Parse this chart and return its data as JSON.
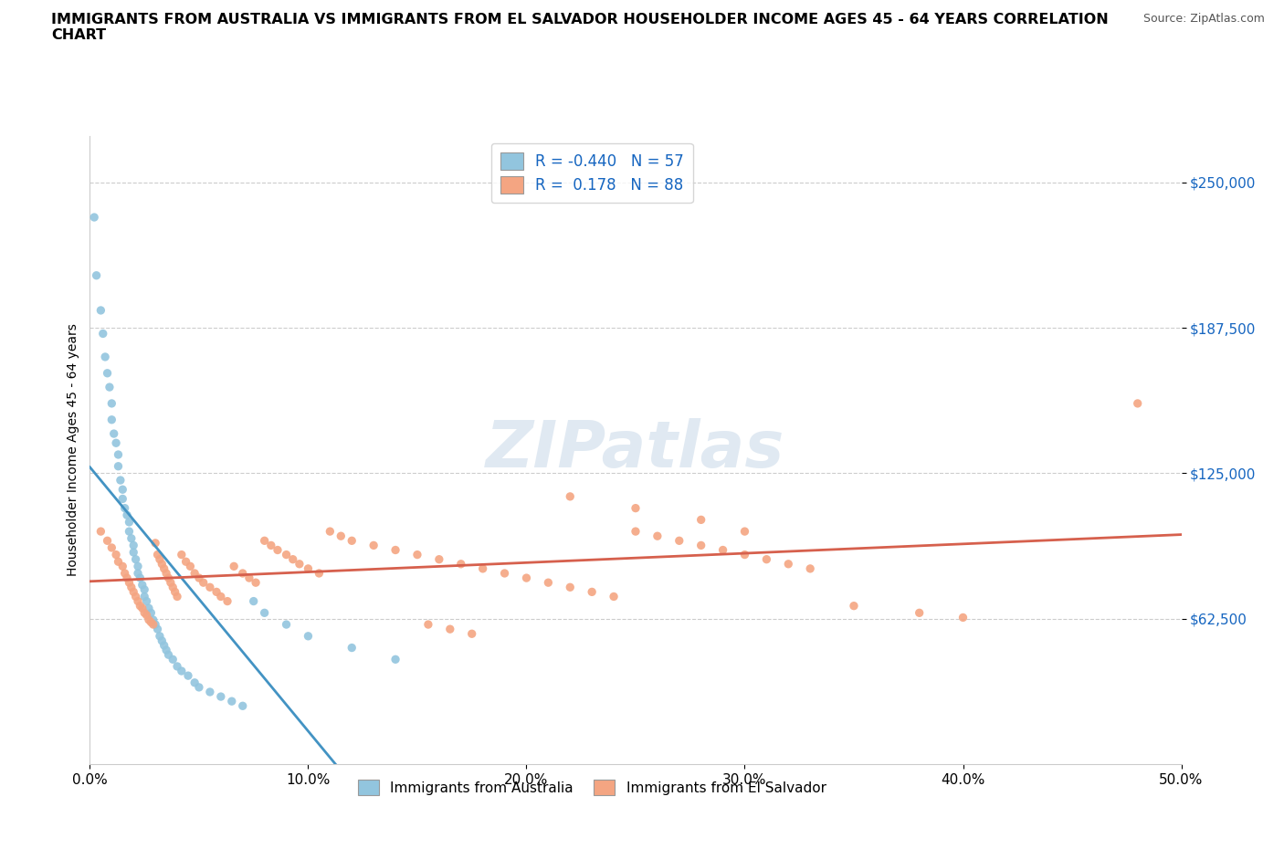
{
  "title": "IMMIGRANTS FROM AUSTRALIA VS IMMIGRANTS FROM EL SALVADOR HOUSEHOLDER INCOME AGES 45 - 64 YEARS CORRELATION\nCHART",
  "source": "Source: ZipAtlas.com",
  "ylabel": "Householder Income Ages 45 - 64 years",
  "xlim": [
    0.0,
    0.5
  ],
  "ylim": [
    0,
    270000
  ],
  "x_ticks": [
    0.0,
    0.1,
    0.2,
    0.3,
    0.4,
    0.5
  ],
  "x_tick_labels": [
    "0.0%",
    "10.0%",
    "20.0%",
    "30.0%",
    "40.0%",
    "50.0%"
  ],
  "y_ticks": [
    62500,
    125000,
    187500,
    250000
  ],
  "y_tick_labels": [
    "$62,500",
    "$125,000",
    "$187,500",
    "$250,000"
  ],
  "australia_color": "#92c5de",
  "australia_line_color": "#4393c3",
  "el_salvador_color": "#f4a582",
  "el_salvador_line_color": "#d6604d",
  "R_australia": -0.44,
  "N_australia": 57,
  "R_el_salvador": 0.178,
  "N_el_salvador": 88,
  "watermark": "ZIPatlas",
  "background_color": "#ffffff",
  "aus_x": [
    0.002,
    0.003,
    0.005,
    0.006,
    0.007,
    0.008,
    0.009,
    0.01,
    0.01,
    0.011,
    0.012,
    0.013,
    0.013,
    0.014,
    0.015,
    0.015,
    0.016,
    0.017,
    0.018,
    0.018,
    0.019,
    0.02,
    0.02,
    0.021,
    0.022,
    0.022,
    0.023,
    0.024,
    0.025,
    0.025,
    0.026,
    0.027,
    0.028,
    0.029,
    0.03,
    0.031,
    0.032,
    0.033,
    0.034,
    0.035,
    0.036,
    0.038,
    0.04,
    0.042,
    0.045,
    0.048,
    0.05,
    0.055,
    0.06,
    0.065,
    0.07,
    0.075,
    0.08,
    0.09,
    0.1,
    0.12,
    0.14
  ],
  "aus_y": [
    235000,
    210000,
    195000,
    185000,
    175000,
    168000,
    162000,
    155000,
    148000,
    142000,
    138000,
    133000,
    128000,
    122000,
    118000,
    114000,
    110000,
    107000,
    104000,
    100000,
    97000,
    94000,
    91000,
    88000,
    85000,
    82000,
    80000,
    77000,
    75000,
    72000,
    70000,
    67000,
    65000,
    62000,
    60000,
    58000,
    55000,
    53000,
    51000,
    49000,
    47000,
    45000,
    42000,
    40000,
    38000,
    35000,
    33000,
    31000,
    29000,
    27000,
    25000,
    70000,
    65000,
    60000,
    55000,
    50000,
    45000
  ],
  "sal_x": [
    0.005,
    0.008,
    0.01,
    0.012,
    0.013,
    0.015,
    0.016,
    0.017,
    0.018,
    0.019,
    0.02,
    0.021,
    0.022,
    0.023,
    0.024,
    0.025,
    0.026,
    0.027,
    0.028,
    0.029,
    0.03,
    0.031,
    0.032,
    0.033,
    0.034,
    0.035,
    0.036,
    0.037,
    0.038,
    0.039,
    0.04,
    0.042,
    0.044,
    0.046,
    0.048,
    0.05,
    0.052,
    0.055,
    0.058,
    0.06,
    0.063,
    0.066,
    0.07,
    0.073,
    0.076,
    0.08,
    0.083,
    0.086,
    0.09,
    0.093,
    0.096,
    0.1,
    0.105,
    0.11,
    0.115,
    0.12,
    0.13,
    0.14,
    0.15,
    0.16,
    0.17,
    0.18,
    0.19,
    0.2,
    0.21,
    0.22,
    0.23,
    0.24,
    0.25,
    0.26,
    0.27,
    0.28,
    0.29,
    0.3,
    0.31,
    0.32,
    0.33,
    0.35,
    0.38,
    0.4,
    0.22,
    0.25,
    0.28,
    0.3,
    0.155,
    0.165,
    0.175,
    0.48
  ],
  "sal_y": [
    100000,
    96000,
    93000,
    90000,
    87000,
    85000,
    82000,
    80000,
    78000,
    76000,
    74000,
    72000,
    70000,
    68000,
    67000,
    65000,
    64000,
    62000,
    61000,
    60000,
    95000,
    90000,
    88000,
    86000,
    84000,
    82000,
    80000,
    78000,
    76000,
    74000,
    72000,
    90000,
    87000,
    85000,
    82000,
    80000,
    78000,
    76000,
    74000,
    72000,
    70000,
    85000,
    82000,
    80000,
    78000,
    96000,
    94000,
    92000,
    90000,
    88000,
    86000,
    84000,
    82000,
    100000,
    98000,
    96000,
    94000,
    92000,
    90000,
    88000,
    86000,
    84000,
    82000,
    80000,
    78000,
    76000,
    74000,
    72000,
    100000,
    98000,
    96000,
    94000,
    92000,
    90000,
    88000,
    86000,
    84000,
    68000,
    65000,
    63000,
    115000,
    110000,
    105000,
    100000,
    60000,
    58000,
    56000,
    155000
  ]
}
